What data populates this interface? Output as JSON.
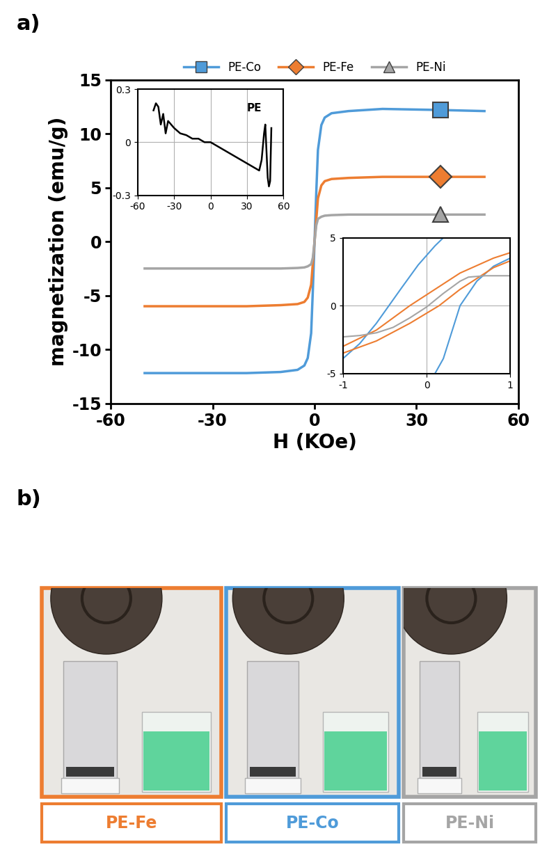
{
  "panel_labels": [
    "a)",
    "b)"
  ],
  "chart_data": [
    {
      "type": "line",
      "xlabel": "H (KOe)",
      "ylabel": "magnetization (emu/g)",
      "xlim": [
        -60,
        60
      ],
      "xticks": [
        -60,
        -30,
        0,
        30,
        60
      ],
      "ylim": [
        -15,
        15
      ],
      "yticks": [
        -15,
        -10,
        -5,
        0,
        5,
        10,
        15
      ],
      "legend": "upper center",
      "grid": false,
      "x": [
        -50,
        -20,
        -10,
        -5,
        -3,
        -2,
        -1,
        -0.5,
        0,
        0.5,
        1,
        2,
        3,
        5,
        10,
        20,
        37,
        50
      ],
      "series": [
        {
          "name": "PE-Co",
          "color": "#4f9bd9",
          "marker": "square",
          "values": [
            -12.2,
            -12.2,
            -12.1,
            -11.9,
            -11.5,
            -10.8,
            -8.5,
            -4.5,
            0,
            4.5,
            8.5,
            10.8,
            11.5,
            11.9,
            12.1,
            12.3,
            12.2,
            12.1
          ]
        },
        {
          "name": "PE-Fe",
          "color": "#ed7d31",
          "marker": "diamond",
          "values": [
            -6.0,
            -6.0,
            -5.9,
            -5.8,
            -5.6,
            -5.2,
            -4.0,
            -2.0,
            0,
            2.0,
            4.0,
            5.2,
            5.6,
            5.8,
            5.9,
            6.0,
            6.0,
            6.0
          ]
        },
        {
          "name": "PE-Ni",
          "color": "#a5a5a5",
          "marker": "triangle",
          "values": [
            -2.5,
            -2.5,
            -2.5,
            -2.45,
            -2.4,
            -2.3,
            -2.1,
            -1.5,
            0,
            1.5,
            2.1,
            2.3,
            2.4,
            2.45,
            2.5,
            2.5,
            2.5,
            2.5
          ]
        }
      ]
    },
    {
      "type": "line",
      "title": "PE",
      "xlim": [
        -60,
        60
      ],
      "xticks": [
        -60,
        -30,
        0,
        30,
        60
      ],
      "ylim": [
        -0.3,
        0.3
      ],
      "yticks": [
        -0.3,
        0,
        0.3
      ],
      "grid": true,
      "x": [
        -47,
        -45,
        -43,
        -41,
        -39,
        -37,
        -35,
        -30,
        -25,
        -20,
        -15,
        -10,
        -5,
        0,
        5,
        10,
        15,
        20,
        25,
        30,
        35,
        40,
        42,
        44,
        45,
        46,
        47,
        48,
        49,
        50
      ],
      "series": [
        {
          "color": "#000000",
          "values": [
            0.18,
            0.22,
            0.2,
            0.1,
            0.16,
            0.05,
            0.12,
            0.08,
            0.05,
            0.04,
            0.02,
            0.02,
            0.0,
            0.0,
            -0.02,
            -0.04,
            -0.06,
            -0.08,
            -0.1,
            -0.12,
            -0.14,
            -0.16,
            -0.1,
            0.05,
            0.1,
            -0.05,
            -0.2,
            -0.25,
            -0.22,
            0.08
          ]
        }
      ]
    },
    {
      "type": "line",
      "xlim": [
        -1,
        1
      ],
      "xticks": [
        -1,
        0,
        1
      ],
      "ylim": [
        -5,
        5
      ],
      "yticks": [
        -5,
        0,
        5
      ],
      "grid": true,
      "series": [
        {
          "name": "PE-Co",
          "color": "#4f9bd9",
          "x": [
            -1,
            -0.8,
            -0.6,
            -0.45,
            -0.3,
            -0.1,
            0,
            0.1,
            0.2
          ],
          "values": [
            -3.9,
            -2.8,
            -1.3,
            0,
            1.3,
            3.0,
            3.7,
            4.4,
            5.0
          ]
        },
        {
          "name": "PE-Co",
          "color": "#4f9bd9",
          "x": [
            0.1,
            0.2,
            0.4,
            0.6,
            0.8,
            1
          ],
          "values": [
            -5.0,
            -3.9,
            0,
            1.8,
            2.9,
            3.5
          ]
        },
        {
          "name": "PE-Fe",
          "color": "#ed7d31",
          "x": [
            -1,
            -0.6,
            -0.2,
            0,
            0.4,
            0.8,
            1
          ],
          "values": [
            -3.0,
            -1.8,
            0,
            0.8,
            2.4,
            3.5,
            3.9
          ]
        },
        {
          "name": "PE-Fe",
          "color": "#ed7d31",
          "x": [
            -1,
            -0.6,
            -0.2,
            0.15,
            0.4,
            0.8,
            1
          ],
          "values": [
            -3.5,
            -2.6,
            -1.3,
            0,
            1.2,
            2.8,
            3.3
          ]
        },
        {
          "name": "PE-Ni",
          "color": "#a5a5a5",
          "x": [
            -1,
            -0.8,
            -0.6,
            -0.4,
            -0.2,
            0,
            0.2,
            0.4,
            0.5,
            0.7,
            1
          ],
          "values": [
            -2.3,
            -2.2,
            -2.0,
            -1.6,
            -0.9,
            -0.1,
            0.9,
            1.8,
            2.1,
            2.2,
            2.2
          ]
        }
      ]
    }
  ],
  "photos": {
    "labels": [
      "PE-Fe",
      "PE-Co",
      "PE-Ni"
    ],
    "colors": [
      "#ed7d31",
      "#4f9bd9",
      "#a5a5a5"
    ]
  }
}
